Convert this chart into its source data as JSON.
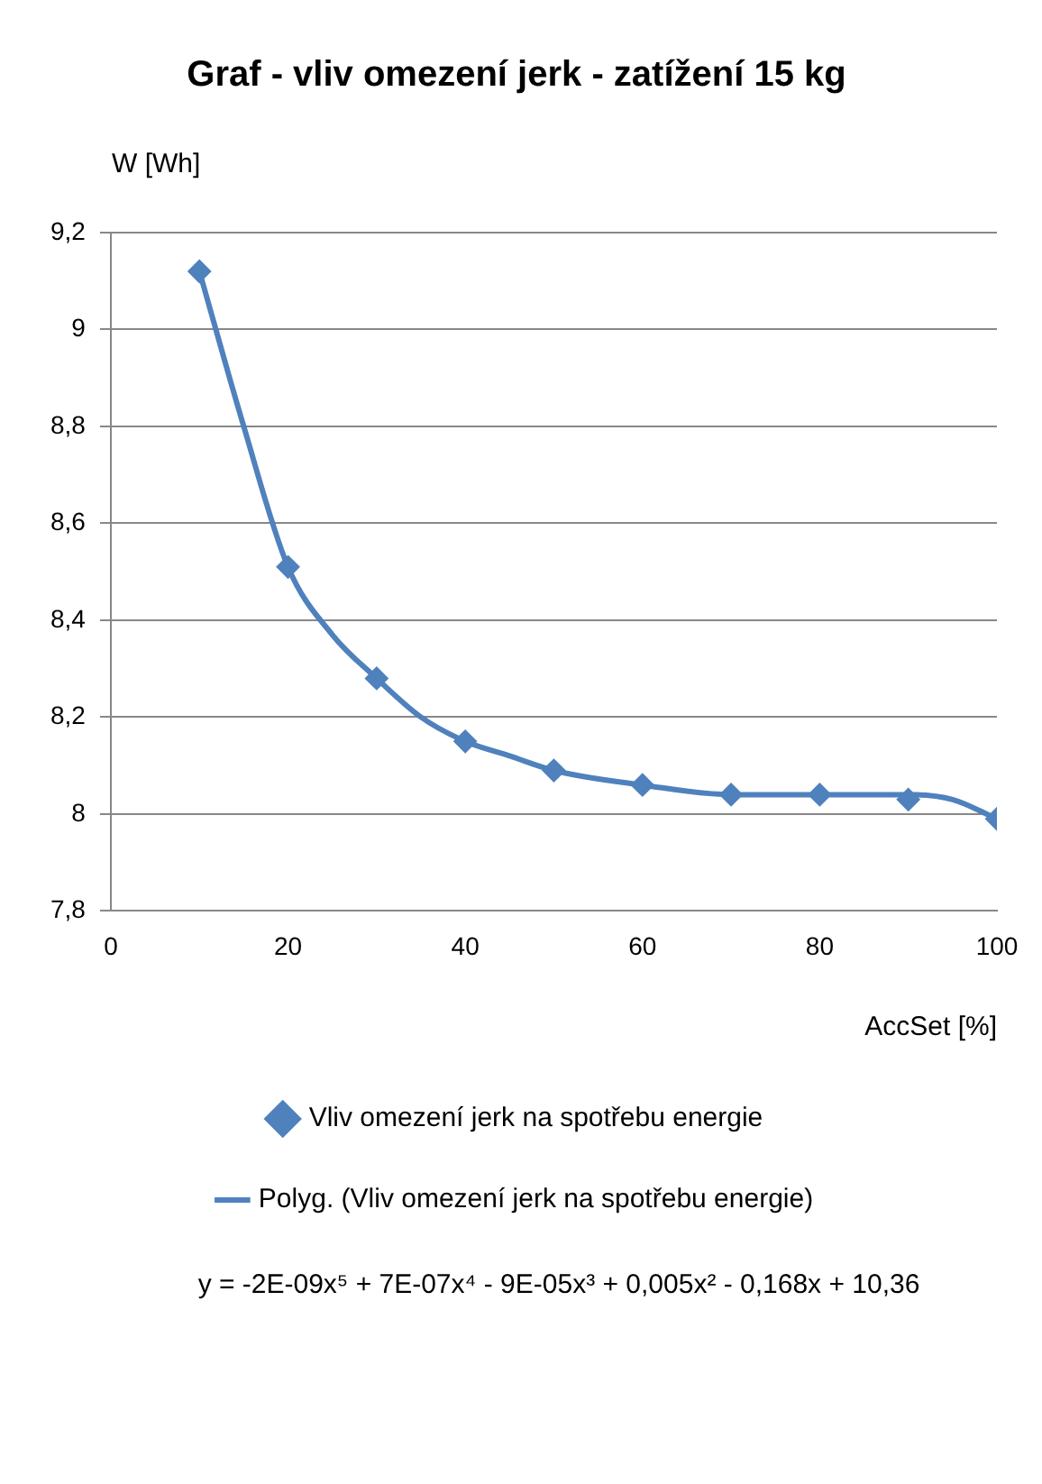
{
  "chart_data": {
    "type": "scatter",
    "title": "Graf - vliv omezení jerk - zatížení 15 kg",
    "xlabel": "AccSet [%]",
    "ylabel": "W [Wh]",
    "x": [
      10,
      20,
      30,
      40,
      50,
      60,
      70,
      80,
      90,
      100
    ],
    "series": [
      {
        "name": "Vliv omezení jerk na spotřebu energie",
        "color": "#4f81bd",
        "marker": "diamond",
        "values": [
          9.12,
          8.51,
          8.28,
          8.15,
          8.09,
          8.06,
          8.04,
          8.04,
          8.03,
          7.99
        ]
      },
      {
        "name": "Polyg. (Vliv omezení jerk na spotřebu energie)",
        "color": "#4f81bd",
        "type": "line",
        "marker": "none",
        "line_style": "solid",
        "x": [
          10,
          15,
          20,
          25,
          30,
          35,
          40,
          45,
          50,
          60,
          70,
          80,
          90,
          95,
          100
        ],
        "values": [
          9.12,
          8.8,
          8.51,
          8.37,
          8.28,
          8.2,
          8.15,
          8.12,
          8.09,
          8.06,
          8.04,
          8.04,
          8.04,
          8.03,
          7.99
        ]
      }
    ],
    "xlim": [
      0,
      100
    ],
    "xticks": [
      0,
      20,
      40,
      60,
      80,
      100
    ],
    "ylim": [
      7.8,
      9.2
    ],
    "yticks": [
      {
        "value": 7.8,
        "label": "7,8"
      },
      8,
      {
        "value": 8.2,
        "label": "8,2"
      },
      {
        "value": 8.4,
        "label": "8,4"
      },
      {
        "value": 8.6,
        "label": "8,6"
      },
      {
        "value": 8.8,
        "label": "8,8"
      },
      9,
      {
        "value": 9.2,
        "label": "9,2"
      }
    ],
    "grid": "y",
    "legend": "bottom",
    "annotations": [
      "y = -2E-09x⁵ + 7E-07x⁴ - 9E-05x³ + 0,005x² - 0,168x + 10,36"
    ]
  }
}
